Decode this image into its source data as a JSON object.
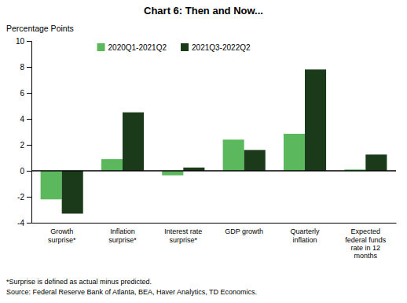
{
  "chart_data": {
    "type": "bar",
    "title": "Chart 6:  Then and Now...",
    "ylabel": "Percentage Points",
    "categories": [
      "Growth\nsurprise*",
      "Inflation\nsurprise*",
      "Interest rate\nsurprise*",
      "GDP growth",
      "Quarterly\ninflation",
      "Expected\nfederal funds\nrate in 12\nmonths"
    ],
    "series": [
      {
        "name": "2020Q1-2021Q2",
        "color": "#5cb85c",
        "values": [
          -2.2,
          0.9,
          -0.35,
          2.4,
          2.85,
          0.1
        ]
      },
      {
        "name": "2021Q3-2022Q2",
        "color": "#1a3a1a",
        "values": [
          -3.3,
          4.5,
          0.25,
          1.6,
          7.8,
          1.25
        ]
      }
    ],
    "ylim": [
      -4,
      10
    ],
    "yticks": [
      -4,
      -2,
      0,
      2,
      4,
      6,
      8,
      10
    ],
    "grid": false,
    "legend": "upper left",
    "annotations": [
      "*Surprise is defined as actual minus predicted.",
      "Source: Federal Reserve Bank of Atlanta, BEA, Haver Analytics, TD Economics."
    ]
  }
}
